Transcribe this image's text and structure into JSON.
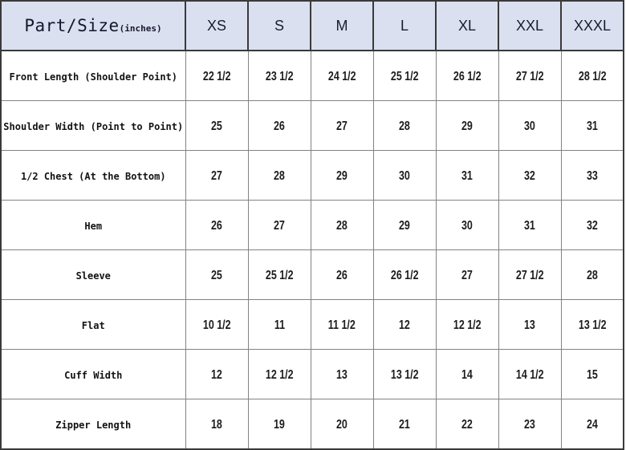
{
  "header": {
    "corner_label": "Part/Size",
    "corner_unit": "(inches)",
    "sizes": [
      "XS",
      "S",
      "M",
      "L",
      "XL",
      "XXL",
      "XXXL"
    ]
  },
  "rows": [
    {
      "label": "Front Length (Shoulder Point)",
      "values": [
        "22 1/2",
        "23 1/2",
        "24 1/2",
        "25 1/2",
        "26 1/2",
        "27 1/2",
        "28 1/2"
      ]
    },
    {
      "label": "Shoulder Width (Point to Point)",
      "values": [
        "25",
        "26",
        "27",
        "28",
        "29",
        "30",
        "31"
      ]
    },
    {
      "label": "1/2 Chest (At the Bottom)",
      "values": [
        "27",
        "28",
        "29",
        "30",
        "31",
        "32",
        "33"
      ]
    },
    {
      "label": "Hem",
      "values": [
        "26",
        "27",
        "28",
        "29",
        "30",
        "31",
        "32"
      ]
    },
    {
      "label": "Sleeve",
      "values": [
        "25",
        "25 1/2",
        "26",
        "26 1/2",
        "27",
        "27 1/2",
        "28"
      ]
    },
    {
      "label": "Flat",
      "values": [
        "10 1/2",
        "11",
        "11 1/2",
        "12",
        "12 1/2",
        "13",
        "13 1/2"
      ]
    },
    {
      "label": "Cuff Width",
      "values": [
        "12",
        "12 1/2",
        "13",
        "13 1/2",
        "14",
        "14 1/2",
        "15"
      ]
    },
    {
      "label": "Zipper Length",
      "values": [
        "18",
        "19",
        "20",
        "21",
        "22",
        "23",
        "24"
      ]
    }
  ],
  "colors": {
    "header_bg": "#dbe0f0",
    "grid_dark": "#3a3a3a",
    "grid_light": "#828282",
    "text": "#16162c"
  }
}
